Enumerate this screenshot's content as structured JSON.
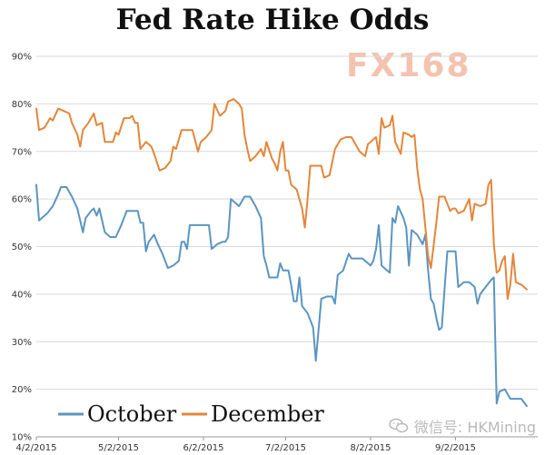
{
  "title": "Fed Rate Hike Odds",
  "watermark": "FX168",
  "credit": "微信号: HKMining",
  "colors": {
    "october": "#5b95c0",
    "december": "#e4863a",
    "grid": "#d9d9d9"
  },
  "chart_data": {
    "type": "line",
    "title": "Fed Rate Hike Odds",
    "ylim": [
      10,
      90
    ],
    "yticks": [
      "10%",
      "20%",
      "30%",
      "40%",
      "50%",
      "60%",
      "70%",
      "80%",
      "90%"
    ],
    "xlim": [
      "2015-04-02",
      "2015-10-02"
    ],
    "xticks": [
      "4/2/2015",
      "5/2/2015",
      "6/2/2015",
      "7/2/2015",
      "8/2/2015",
      "9/2/2015"
    ],
    "grid": "horizontal",
    "legend": "bottom-left",
    "series": [
      {
        "name": "October",
        "color": "#5b95c0",
        "points": [
          [
            "2015-04-02",
            63
          ],
          [
            "2015-04-03",
            55.5
          ],
          [
            "2015-04-06",
            57
          ],
          [
            "2015-04-08",
            58.5
          ],
          [
            "2015-04-10",
            61
          ],
          [
            "2015-04-11",
            62.5
          ],
          [
            "2015-04-13",
            62.5
          ],
          [
            "2015-04-15",
            60.5
          ],
          [
            "2015-04-17",
            58
          ],
          [
            "2015-04-19",
            53
          ],
          [
            "2015-04-20",
            56
          ],
          [
            "2015-04-22",
            57.5
          ],
          [
            "2015-04-23",
            58
          ],
          [
            "2015-04-24",
            56.5
          ],
          [
            "2015-04-25",
            58
          ],
          [
            "2015-04-27",
            53
          ],
          [
            "2015-04-29",
            52
          ],
          [
            "2015-05-01",
            52
          ],
          [
            "2015-05-03",
            54.5
          ],
          [
            "2015-05-05",
            57.5
          ],
          [
            "2015-05-07",
            57.5
          ],
          [
            "2015-05-09",
            57.5
          ],
          [
            "2015-05-10",
            55
          ],
          [
            "2015-05-11",
            55
          ],
          [
            "2015-05-12",
            49
          ],
          [
            "2015-05-13",
            51
          ],
          [
            "2015-05-15",
            52.5
          ],
          [
            "2015-05-16",
            51
          ],
          [
            "2015-05-18",
            48.5
          ],
          [
            "2015-05-20",
            45.5
          ],
          [
            "2015-05-22",
            46
          ],
          [
            "2015-05-24",
            47
          ],
          [
            "2015-05-25",
            51
          ],
          [
            "2015-05-26",
            51
          ],
          [
            "2015-05-27",
            49.5
          ],
          [
            "2015-05-28",
            54.5
          ],
          [
            "2015-05-30",
            54.5
          ],
          [
            "2015-06-02",
            54.5
          ],
          [
            "2015-06-04",
            54.5
          ],
          [
            "2015-06-05",
            49.5
          ],
          [
            "2015-06-07",
            50.5
          ],
          [
            "2015-06-09",
            51
          ],
          [
            "2015-06-10",
            51
          ],
          [
            "2015-06-11",
            52
          ],
          [
            "2015-06-12",
            60
          ],
          [
            "2015-06-14",
            59
          ],
          [
            "2015-06-15",
            58.5
          ],
          [
            "2015-06-17",
            60.5
          ],
          [
            "2015-06-19",
            60.5
          ],
          [
            "2015-06-21",
            58.5
          ],
          [
            "2015-06-23",
            56
          ],
          [
            "2015-06-24",
            48
          ],
          [
            "2015-06-25",
            46
          ],
          [
            "2015-06-26",
            43.5
          ],
          [
            "2015-06-28",
            43.5
          ],
          [
            "2015-06-29",
            43.5
          ],
          [
            "2015-06-30",
            46.5
          ],
          [
            "2015-07-01",
            45
          ],
          [
            "2015-07-03",
            45
          ],
          [
            "2015-07-04",
            42
          ],
          [
            "2015-07-05",
            38.5
          ],
          [
            "2015-07-06",
            38.5
          ],
          [
            "2015-07-07",
            43.5
          ],
          [
            "2015-07-08",
            37.5
          ],
          [
            "2015-07-10",
            36
          ],
          [
            "2015-07-12",
            33
          ],
          [
            "2015-07-13",
            26
          ],
          [
            "2015-07-15",
            39
          ],
          [
            "2015-07-17",
            39.5
          ],
          [
            "2015-07-19",
            39.5
          ],
          [
            "2015-07-20",
            38
          ],
          [
            "2015-07-21",
            44
          ],
          [
            "2015-07-23",
            45
          ],
          [
            "2015-07-25",
            48.5
          ],
          [
            "2015-07-26",
            47.5
          ],
          [
            "2015-07-28",
            47.5
          ],
          [
            "2015-07-30",
            47.5
          ],
          [
            "2015-08-02",
            46
          ],
          [
            "2015-08-03",
            47
          ],
          [
            "2015-08-04",
            49.5
          ],
          [
            "2015-08-05",
            54.5
          ],
          [
            "2015-08-06",
            46
          ],
          [
            "2015-08-08",
            45
          ],
          [
            "2015-08-09",
            44.5
          ],
          [
            "2015-08-10",
            56
          ],
          [
            "2015-08-11",
            55
          ],
          [
            "2015-08-12",
            58.5
          ],
          [
            "2015-08-14",
            56
          ],
          [
            "2015-08-15",
            54
          ],
          [
            "2015-08-16",
            46
          ],
          [
            "2015-08-17",
            53.5
          ],
          [
            "2015-08-19",
            52.5
          ],
          [
            "2015-08-20",
            51.5
          ],
          [
            "2015-08-21",
            50.5
          ],
          [
            "2015-08-22",
            52.5
          ],
          [
            "2015-08-23",
            45
          ],
          [
            "2015-08-24",
            39
          ],
          [
            "2015-08-25",
            38
          ],
          [
            "2015-08-26",
            35
          ],
          [
            "2015-08-27",
            32.5
          ],
          [
            "2015-08-28",
            33
          ],
          [
            "2015-08-29",
            41
          ],
          [
            "2015-08-30",
            49
          ],
          [
            "2015-09-01",
            49
          ],
          [
            "2015-09-02",
            49
          ],
          [
            "2015-09-03",
            41.5
          ],
          [
            "2015-09-05",
            42.5
          ],
          [
            "2015-09-07",
            42.5
          ],
          [
            "2015-09-09",
            41.5
          ],
          [
            "2015-09-10",
            38
          ],
          [
            "2015-09-11",
            40
          ],
          [
            "2015-09-13",
            41.5
          ],
          [
            "2015-09-15",
            43
          ],
          [
            "2015-09-16",
            43.5
          ],
          [
            "2015-09-17",
            17
          ],
          [
            "2015-09-18",
            19.5
          ],
          [
            "2015-09-20",
            20
          ],
          [
            "2015-09-22",
            18
          ],
          [
            "2015-09-24",
            18
          ],
          [
            "2015-09-26",
            18
          ],
          [
            "2015-09-28",
            16.5
          ]
        ]
      },
      {
        "name": "December",
        "color": "#e4863a",
        "points": [
          [
            "2015-04-02",
            79
          ],
          [
            "2015-04-03",
            74.5
          ],
          [
            "2015-04-05",
            75
          ],
          [
            "2015-04-07",
            77
          ],
          [
            "2015-04-08",
            76.5
          ],
          [
            "2015-04-10",
            79
          ],
          [
            "2015-04-12",
            78.5
          ],
          [
            "2015-04-14",
            78
          ],
          [
            "2015-04-15",
            76
          ],
          [
            "2015-04-17",
            73.5
          ],
          [
            "2015-04-18",
            71
          ],
          [
            "2015-04-19",
            74.5
          ],
          [
            "2015-04-21",
            76
          ],
          [
            "2015-04-23",
            78
          ],
          [
            "2015-04-24",
            75.5
          ],
          [
            "2015-04-26",
            76
          ],
          [
            "2015-04-27",
            72
          ],
          [
            "2015-04-30",
            72
          ],
          [
            "2015-05-01",
            74
          ],
          [
            "2015-05-02",
            73.5
          ],
          [
            "2015-05-04",
            77
          ],
          [
            "2015-05-06",
            77
          ],
          [
            "2015-05-07",
            77.5
          ],
          [
            "2015-05-08",
            76
          ],
          [
            "2015-05-09",
            76
          ],
          [
            "2015-05-10",
            70.5
          ],
          [
            "2015-05-12",
            72
          ],
          [
            "2015-05-14",
            71
          ],
          [
            "2015-05-15",
            69.5
          ],
          [
            "2015-05-17",
            66
          ],
          [
            "2015-05-19",
            66.5
          ],
          [
            "2015-05-21",
            68
          ],
          [
            "2015-05-22",
            71
          ],
          [
            "2015-05-23",
            70.5
          ],
          [
            "2015-05-25",
            74.5
          ],
          [
            "2015-05-27",
            74.5
          ],
          [
            "2015-05-29",
            74.5
          ],
          [
            "2015-05-31",
            70
          ],
          [
            "2015-06-01",
            72
          ],
          [
            "2015-06-03",
            73
          ],
          [
            "2015-06-05",
            74.5
          ],
          [
            "2015-06-06",
            80
          ],
          [
            "2015-06-08",
            77.5
          ],
          [
            "2015-06-10",
            78.5
          ],
          [
            "2015-06-11",
            80.5
          ],
          [
            "2015-06-13",
            81
          ],
          [
            "2015-06-15",
            80
          ],
          [
            "2015-06-16",
            79
          ],
          [
            "2015-06-17",
            73.5
          ],
          [
            "2015-06-18",
            70.5
          ],
          [
            "2015-06-19",
            68
          ],
          [
            "2015-06-21",
            69
          ],
          [
            "2015-06-23",
            70.5
          ],
          [
            "2015-06-24",
            69
          ],
          [
            "2015-06-25",
            72
          ],
          [
            "2015-06-27",
            68.5
          ],
          [
            "2015-06-28",
            67.5
          ],
          [
            "2015-06-29",
            66
          ],
          [
            "2015-06-30",
            70
          ],
          [
            "2015-07-01",
            72
          ],
          [
            "2015-07-02",
            66
          ],
          [
            "2015-07-03",
            66
          ],
          [
            "2015-07-04",
            63
          ],
          [
            "2015-07-06",
            62
          ],
          [
            "2015-07-08",
            58
          ],
          [
            "2015-07-09",
            54
          ],
          [
            "2015-07-10",
            60
          ],
          [
            "2015-07-11",
            67
          ],
          [
            "2015-07-13",
            67
          ],
          [
            "2015-07-15",
            67
          ],
          [
            "2015-07-16",
            64.5
          ],
          [
            "2015-07-18",
            65
          ],
          [
            "2015-07-20",
            70.5
          ],
          [
            "2015-07-22",
            72.5
          ],
          [
            "2015-07-24",
            73
          ],
          [
            "2015-07-26",
            73
          ],
          [
            "2015-07-27",
            72
          ],
          [
            "2015-07-29",
            70
          ],
          [
            "2015-07-31",
            69
          ],
          [
            "2015-08-01",
            71.5
          ],
          [
            "2015-08-02",
            72
          ],
          [
            "2015-08-04",
            73
          ],
          [
            "2015-08-05",
            69.5
          ],
          [
            "2015-08-06",
            77
          ],
          [
            "2015-08-07",
            75
          ],
          [
            "2015-08-09",
            75.5
          ],
          [
            "2015-08-10",
            77.5
          ],
          [
            "2015-08-11",
            72
          ],
          [
            "2015-08-13",
            69.5
          ],
          [
            "2015-08-14",
            74
          ],
          [
            "2015-08-16",
            73.5
          ],
          [
            "2015-08-17",
            73
          ],
          [
            "2015-08-18",
            73.5
          ],
          [
            "2015-08-19",
            66.5
          ],
          [
            "2015-08-20",
            62
          ],
          [
            "2015-08-21",
            60
          ],
          [
            "2015-08-22",
            54
          ],
          [
            "2015-08-23",
            48
          ],
          [
            "2015-08-24",
            45.5
          ],
          [
            "2015-08-26",
            55
          ],
          [
            "2015-08-27",
            60.5
          ],
          [
            "2015-08-28",
            60.5
          ],
          [
            "2015-08-29",
            60.5
          ],
          [
            "2015-08-31",
            57.5
          ],
          [
            "2015-09-01",
            58
          ],
          [
            "2015-09-02",
            58
          ],
          [
            "2015-09-03",
            57
          ],
          [
            "2015-09-05",
            57.5
          ],
          [
            "2015-09-07",
            60
          ],
          [
            "2015-09-08",
            55.5
          ],
          [
            "2015-09-09",
            59
          ],
          [
            "2015-09-11",
            58.5
          ],
          [
            "2015-09-13",
            59
          ],
          [
            "2015-09-14",
            63
          ],
          [
            "2015-09-15",
            64
          ],
          [
            "2015-09-16",
            50.5
          ],
          [
            "2015-09-17",
            44.5
          ],
          [
            "2015-09-18",
            45
          ],
          [
            "2015-09-19",
            47
          ],
          [
            "2015-09-20",
            48
          ],
          [
            "2015-09-21",
            39
          ],
          [
            "2015-09-22",
            42
          ],
          [
            "2015-09-23",
            48.5
          ],
          [
            "2015-09-24",
            42.5
          ],
          [
            "2015-09-26",
            42
          ],
          [
            "2015-09-28",
            41
          ]
        ]
      }
    ]
  }
}
